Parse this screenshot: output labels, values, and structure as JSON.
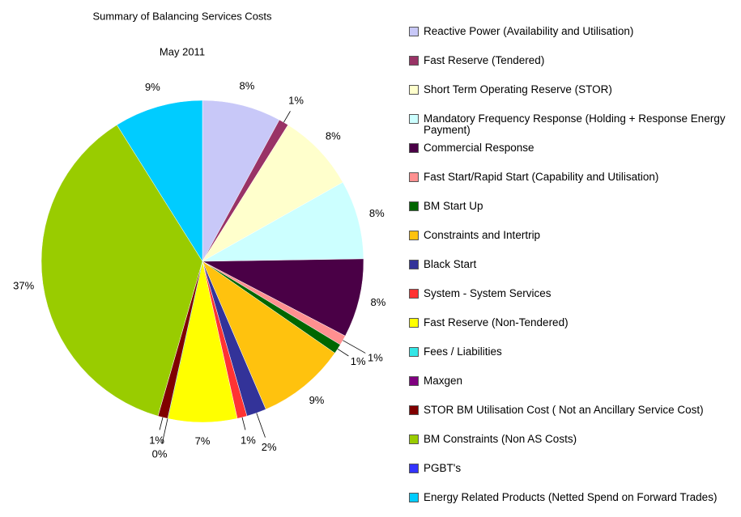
{
  "chart_data": {
    "type": "pie",
    "title": "Summary of Balancing Services Costs",
    "subtitle": "May 2011",
    "categories": [
      "Reactive Power (Availability and Utilisation)",
      "Fast Reserve (Tendered)",
      "Short Term Operating Reserve (STOR)",
      "Mandatory Frequency Response (Holding + Response Energy Payment)",
      "Commercial Response",
      "Fast Start/Rapid Start (Capability and Utilisation)",
      "BM Start Up",
      "Constraints and Intertrip",
      "Black Start",
      "System - System Services",
      "Fast Reserve (Non-Tendered)",
      "Fees / Liabilities",
      "Maxgen",
      "STOR BM Utilisation Cost ( Not an Ancillary Service Cost)",
      "BM Constraints (Non AS Costs)",
      "PGBT's",
      "Energy Related Products (Netted Spend on Forward Trades)"
    ],
    "values": [
      8,
      1,
      8,
      8,
      8,
      1,
      1,
      9,
      2,
      1,
      7,
      0,
      null,
      1,
      37,
      null,
      9
    ],
    "value_labels": [
      "8%",
      "1%",
      "8%",
      "8%",
      "8%",
      "1%",
      "1%",
      "9%",
      "2%",
      "1%",
      "7%",
      "0%",
      null,
      "1%",
      "37%",
      null,
      "9%"
    ],
    "colors": [
      "#c8c8f8",
      "#993366",
      "#ffffcc",
      "#ccffff",
      "#4a0046",
      "#ff9090",
      "#006600",
      "#ffc20e",
      "#333399",
      "#ff3333",
      "#ffff00",
      "#33e6e6",
      "#800080",
      "#800000",
      "#99cc00",
      "#3333ff",
      "#00ccff"
    ],
    "legend": "right"
  }
}
